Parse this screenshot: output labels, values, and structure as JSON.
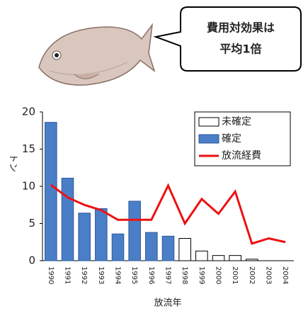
{
  "callout": {
    "lines": [
      "費用対効果は",
      "平均1倍"
    ]
  },
  "chart_data": {
    "type": "bar",
    "y_label": "トン",
    "x_label": "放流年",
    "categories": [
      "1990",
      "1991",
      "1992",
      "1993",
      "1994",
      "1995",
      "1996",
      "1997",
      "1998",
      "1999",
      "2000",
      "2001",
      "2002",
      "2003",
      "2004"
    ],
    "series": [
      {
        "name": "未確定",
        "type": "bar",
        "color": "#ffffff",
        "stroke": "#000000",
        "values": [
          null,
          null,
          null,
          null,
          null,
          null,
          null,
          null,
          3.0,
          1.3,
          0.7,
          0.7,
          0.2,
          null,
          null
        ]
      },
      {
        "name": "確定",
        "type": "bar",
        "color": "#4a7fc8",
        "stroke": "#2d5a9a",
        "values": [
          18.6,
          11.1,
          6.4,
          7.0,
          3.6,
          8.0,
          3.8,
          3.3,
          null,
          null,
          null,
          null,
          null,
          null,
          null
        ]
      },
      {
        "name": "放流経費",
        "type": "line",
        "color": "#ee1111",
        "values": [
          10.2,
          8.5,
          7.5,
          6.8,
          5.5,
          5.5,
          5.5,
          10.1,
          5.0,
          8.3,
          6.3,
          9.3,
          2.3,
          3.0,
          2.5
        ]
      }
    ],
    "ylim": [
      0,
      20
    ],
    "yticks": [
      0,
      5,
      10,
      15,
      20
    ],
    "grid": false
  }
}
